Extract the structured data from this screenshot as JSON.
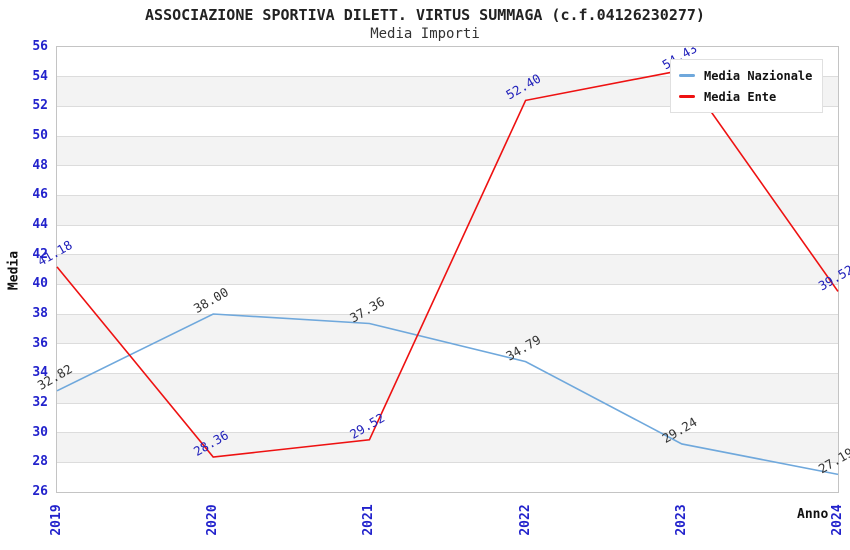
{
  "header": {
    "title": "ASSOCIAZIONE SPORTIVA DILETT. VIRTUS SUMMAGA (c.f.04126230277)",
    "subtitle": "Media Importi"
  },
  "chart_data": {
    "type": "line",
    "x_categories": [
      "2019",
      "2020",
      "2021",
      "2022",
      "2023",
      "2024"
    ],
    "series": [
      {
        "name": "Media Nazionale",
        "color": "#6FA8DC",
        "label_color": "#333333",
        "values": [
          32.82,
          38.0,
          37.36,
          34.79,
          29.24,
          27.19
        ]
      },
      {
        "name": "Media Ente",
        "color": "#EE1111",
        "label_color": "#2222BB",
        "values": [
          41.18,
          28.36,
          29.52,
          52.4,
          54.43,
          39.52
        ]
      }
    ],
    "xlabel": "Anno",
    "ylabel": "Media",
    "ylim": [
      26,
      56
    ],
    "ytick_step": 2,
    "grid": true,
    "legend_position": "top-right",
    "band_colors": [
      "#FFFFFF",
      "#F3F3F3"
    ]
  },
  "colors": {
    "tick_label": "#2222CC",
    "grid_line": "#DCDCDC",
    "plot_border": "#C4C4C4"
  }
}
